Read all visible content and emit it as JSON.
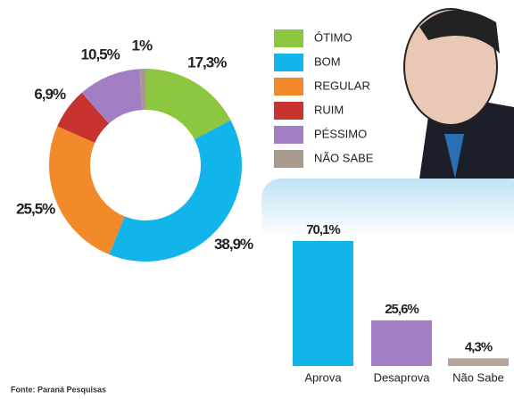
{
  "chart_data": [
    {
      "type": "donut",
      "categories": [
        "ÓTIMO",
        "BOM",
        "REGULAR",
        "RUIM",
        "PÉSSIMO",
        "NÃO SABE"
      ],
      "values": [
        17.3,
        38.9,
        25.5,
        6.9,
        10.5,
        1
      ],
      "value_labels": [
        "17,3%",
        "38,9%",
        "25,5%",
        "6,9%",
        "10,5%",
        "1%"
      ],
      "colors": [
        "#8dc63f",
        "#12b5ea",
        "#f38a2a",
        "#c8322f",
        "#a27fc4",
        "#a89a8f"
      ],
      "legend": "top-right"
    },
    {
      "type": "bar",
      "categories": [
        "Aprova",
        "Desaprova",
        "Não Sabe"
      ],
      "values": [
        70.1,
        25.6,
        4.3
      ],
      "value_labels": [
        "70,1%",
        "25,6%",
        "4,3%"
      ],
      "colors": [
        "#12b5ea",
        "#a27fc4",
        "#b5a49a"
      ]
    }
  ],
  "source": "Fonte: Paraná Pesquisas"
}
